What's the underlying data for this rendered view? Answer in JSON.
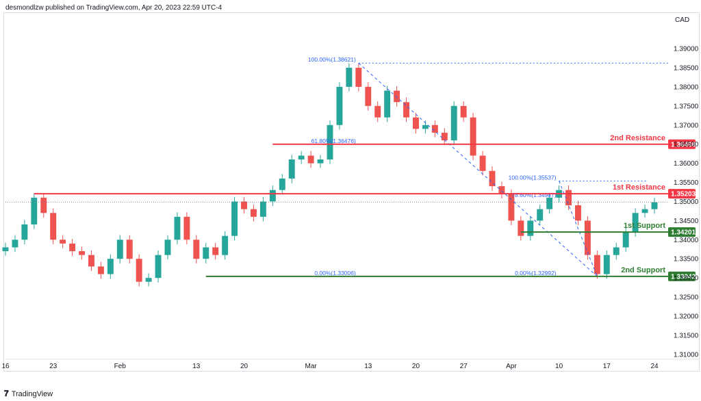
{
  "header": {
    "text": "desmondlzw published on TradingView.com, Apr 20, 2023 22:59 UTC-4"
  },
  "footer": {
    "brand": "TradingView",
    "brand_icon": "tradingview-logo-icon"
  },
  "chart_data": {
    "type": "candlestick",
    "currency": "CAD",
    "ylim": [
      1.3055,
      1.3995
    ],
    "y_ticks": [
      "1.31000",
      "1.31500",
      "1.32000",
      "1.32500",
      "1.33000",
      "1.33500",
      "1.34000",
      "1.34500",
      "1.35000",
      "1.35500",
      "1.36000",
      "1.36500",
      "1.37000",
      "1.37500",
      "1.38000",
      "1.38500",
      "1.39000"
    ],
    "x_ticks": [
      {
        "label": "16",
        "i": 0
      },
      {
        "label": "23",
        "i": 5
      },
      {
        "label": "Feb",
        "i": 12
      },
      {
        "label": "13",
        "i": 20
      },
      {
        "label": "20",
        "i": 25
      },
      {
        "label": "Mar",
        "i": 32
      },
      {
        "label": "13",
        "i": 38
      },
      {
        "label": "20",
        "i": 43
      },
      {
        "label": "27",
        "i": 48
      },
      {
        "label": "Apr",
        "i": 53
      },
      {
        "label": "10",
        "i": 58
      },
      {
        "label": "17",
        "i": 63
      },
      {
        "label": "24",
        "i": 68
      }
    ],
    "closes": [
      1.338,
      1.34,
      1.344,
      1.351,
      1.347,
      1.34,
      1.339,
      1.337,
      1.336,
      1.333,
      1.331,
      1.335,
      1.34,
      1.335,
      1.329,
      1.33,
      1.336,
      1.34,
      1.346,
      1.34,
      1.335,
      1.338,
      1.336,
      1.341,
      1.35,
      1.348,
      1.346,
      1.35,
      1.353,
      1.356,
      1.361,
      1.362,
      1.36,
      1.361,
      1.37,
      1.38,
      1.385,
      1.38,
      1.375,
      1.372,
      1.379,
      1.376,
      1.372,
      1.369,
      1.37,
      1.368,
      1.366,
      1.375,
      1.372,
      1.362,
      1.358,
      1.354,
      1.352,
      1.345,
      1.341,
      1.345,
      1.348,
      1.351,
      1.353,
      1.349,
      1.345,
      1.336,
      1.331,
      1.336,
      1.338,
      1.342,
      1.347,
      1.348,
      1.3498
    ],
    "overlays": {
      "current_price": 1.3498,
      "levels": [
        {
          "name": "2nd Resistance",
          "value": "1.36498",
          "color": "#f23645",
          "from_i": 28
        },
        {
          "name": "1st Resistance",
          "value": "1.35203",
          "color": "#f23645",
          "from_i": 3
        },
        {
          "name": "1st Support",
          "value": "1.34201",
          "color": "#2e7d32",
          "from_i": 54
        },
        {
          "name": "2nd Support",
          "value": "1.33042",
          "color": "#2e7d32",
          "from_i": 21
        }
      ],
      "fib_labels": [
        {
          "text": "100.00%(1.38621)",
          "y": 1.38621,
          "i": 37
        },
        {
          "text": "0.00%(1.33006)",
          "y": 1.33042,
          "i": 37
        },
        {
          "text": "61.80%(1.36476)",
          "y": 1.36498,
          "i": 37
        },
        {
          "text": "100.00%(1.35537)",
          "y": 1.35537,
          "i": 58
        },
        {
          "text": "78.60%(1.34987)",
          "y": 1.3508,
          "i": 58
        },
        {
          "text": "0.00%(1.32992)",
          "y": 1.33042,
          "i": 58
        }
      ]
    },
    "colors": {
      "up": "#26a69a",
      "down": "#ef5350",
      "resistance": "#f23645",
      "support": "#2e7d32",
      "fib": "#2962ff"
    }
  }
}
